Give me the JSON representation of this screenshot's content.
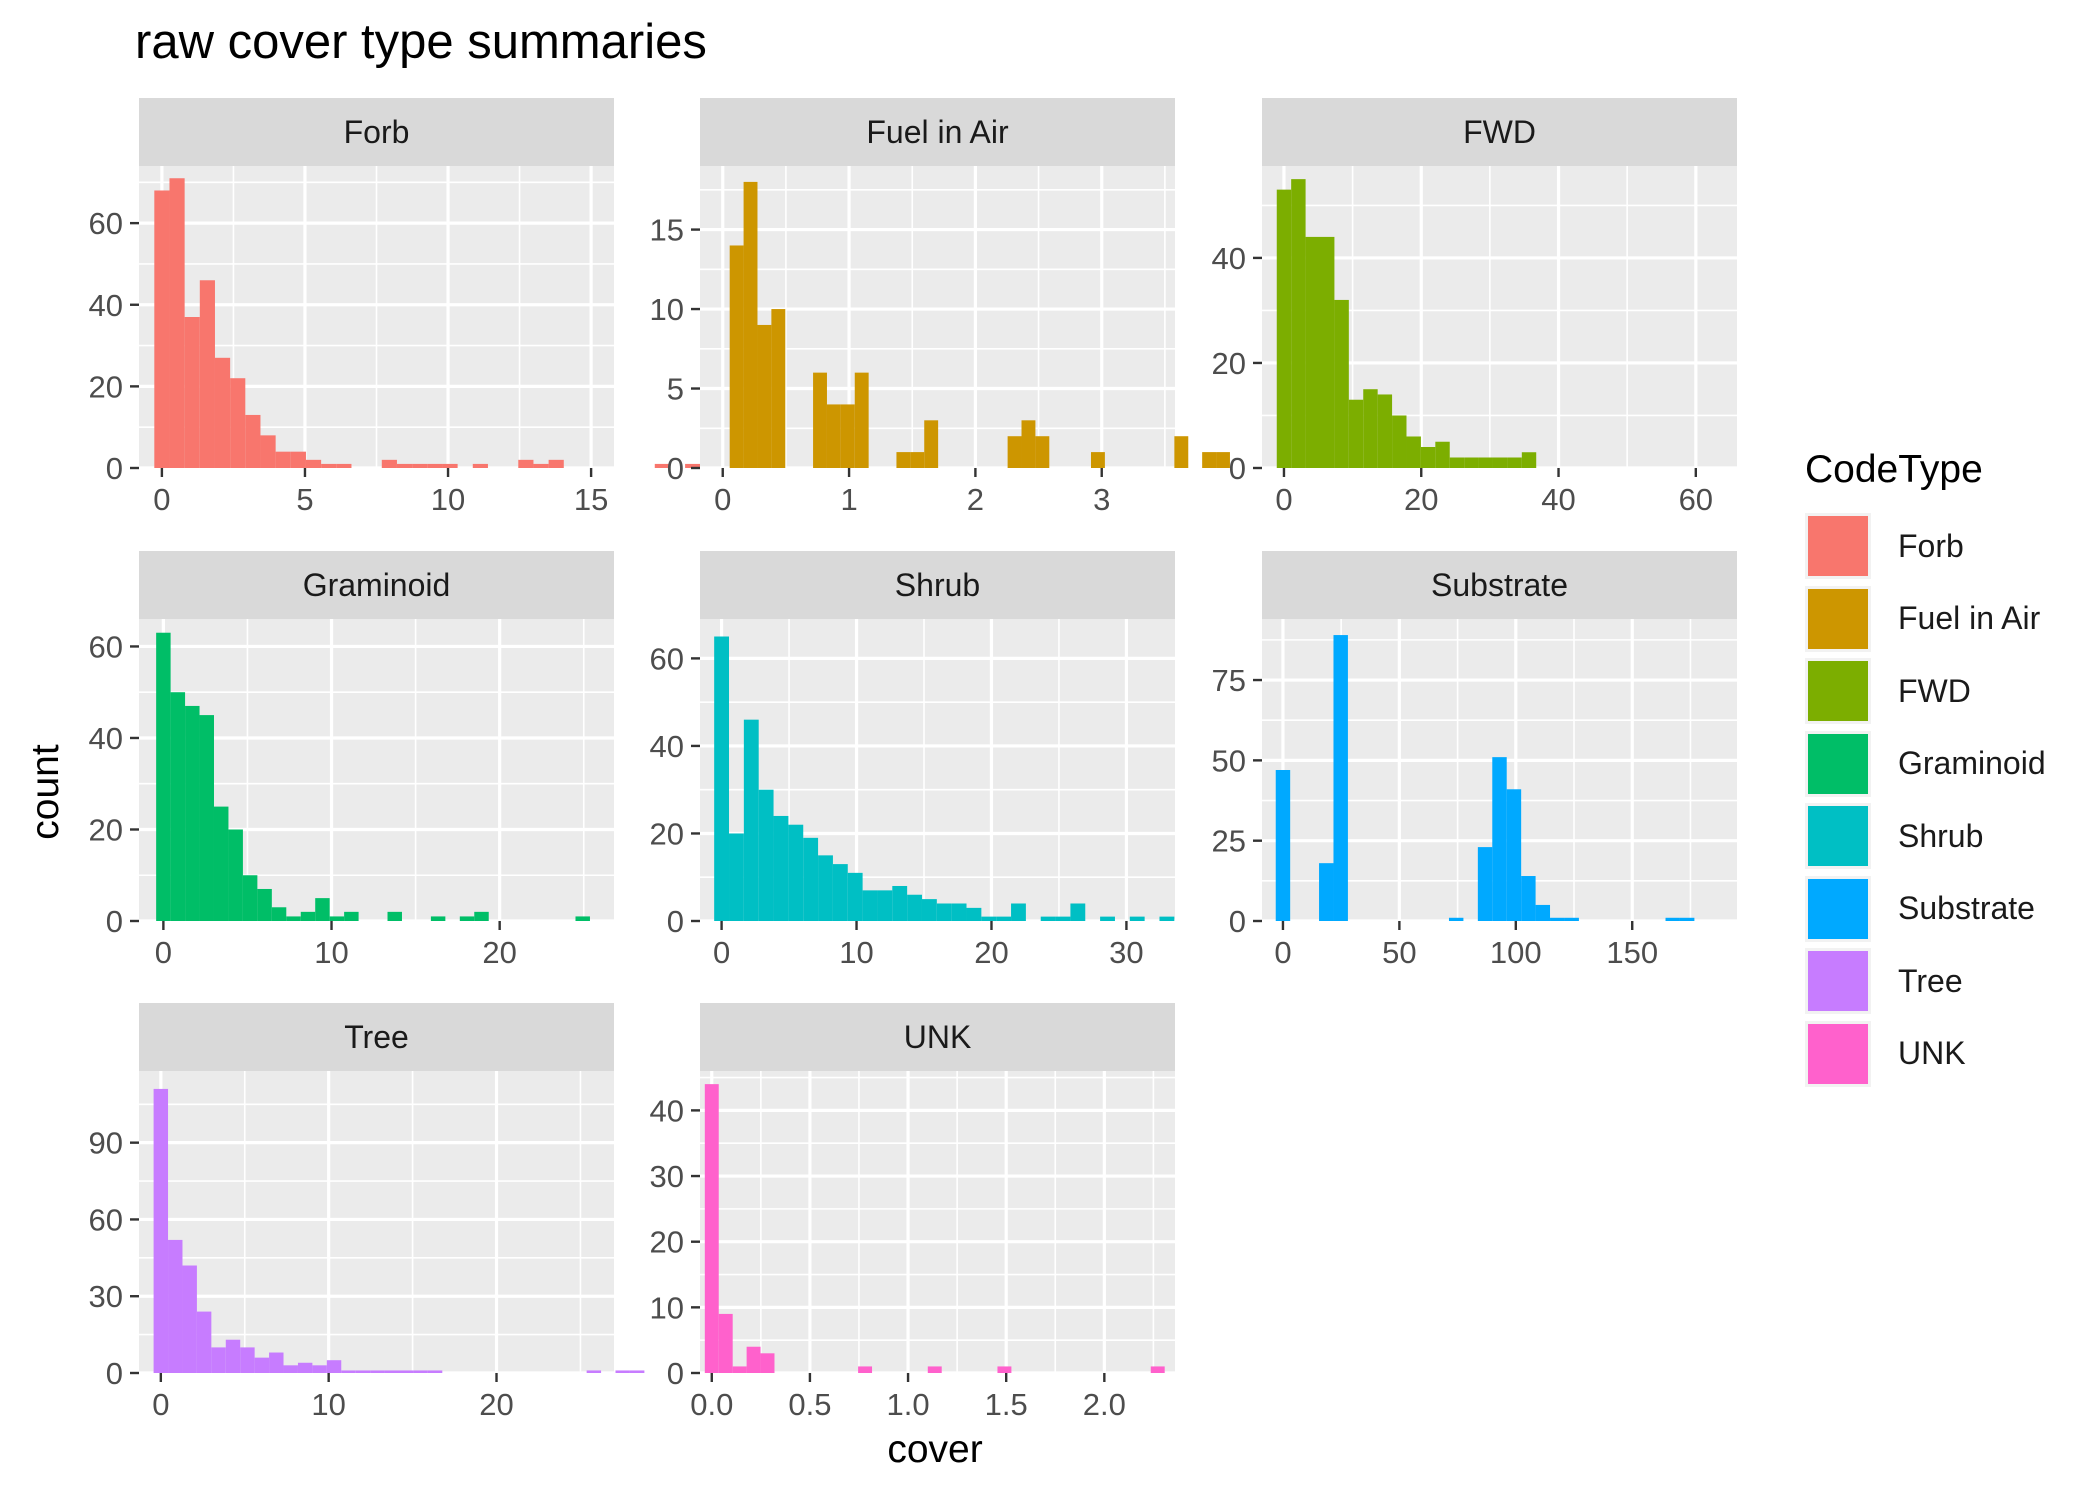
{
  "chart_data": {
    "type": "bar",
    "title": "raw cover type summaries",
    "xlabel": "cover",
    "ylabel": "count",
    "legend": {
      "title": "CodeType",
      "position": "right"
    },
    "grid": true,
    "panels": [
      {
        "name": "Forb",
        "color": "#F8766D",
        "xlim": [
          -0.8,
          15.8
        ],
        "ylim": [
          0,
          74
        ],
        "xticks": [
          0,
          5,
          10,
          15
        ],
        "yticks": [
          0,
          20,
          40,
          60
        ],
        "binwidth": 0.53,
        "bin_start": -0.265,
        "counts": [
          68,
          71,
          37,
          46,
          27,
          22,
          13,
          8,
          4,
          4,
          2,
          1,
          1,
          0,
          0,
          2,
          1,
          1,
          1,
          1,
          0,
          1,
          0,
          0,
          2,
          1,
          2,
          0,
          0,
          0,
          0,
          0,
          0,
          1,
          0,
          1,
          1
        ]
      },
      {
        "name": "Fuel in Air",
        "color": "#CD9600",
        "xlim": [
          -0.18,
          3.58
        ],
        "ylim": [
          0,
          19
        ],
        "xticks": [
          0,
          1,
          2,
          3
        ],
        "yticks": [
          0,
          5,
          10,
          15
        ],
        "binwidth": 0.11,
        "bin_start": 0.055,
        "counts": [
          14,
          18,
          9,
          10,
          0,
          0,
          6,
          4,
          4,
          6,
          0,
          0,
          1,
          1,
          3,
          0,
          0,
          0,
          0,
          0,
          2,
          3,
          2,
          0,
          0,
          0,
          1,
          0,
          0,
          0,
          0,
          0,
          2,
          0,
          1,
          1
        ]
      },
      {
        "name": "FWD",
        "color": "#7CAE00",
        "xlim": [
          -3.2,
          66
        ],
        "ylim": [
          0,
          57.5
        ],
        "xticks": [
          0,
          20,
          40,
          60
        ],
        "yticks": [
          0,
          20,
          40
        ],
        "binwidth": 2.1,
        "bin_start": -1.05,
        "counts": [
          53,
          55,
          44,
          44,
          32,
          13,
          15,
          14,
          10,
          6,
          4,
          5,
          2,
          2,
          2,
          2,
          2,
          3,
          0,
          0,
          0,
          0,
          0,
          0,
          0,
          0,
          0,
          0,
          0,
          0,
          0,
          0,
          0,
          0,
          0,
          0,
          0,
          0,
          0,
          0,
          0,
          0,
          0,
          0,
          0,
          0,
          0,
          0,
          0,
          0,
          0,
          0,
          0,
          0,
          0,
          0,
          0,
          0,
          0,
          0,
          0,
          0,
          0,
          0,
          0,
          0,
          0,
          0,
          0,
          0,
          0,
          0,
          0,
          0,
          0,
          0,
          0,
          0,
          0,
          0,
          0,
          0,
          0,
          0,
          0,
          0,
          0,
          0,
          0,
          0,
          0,
          0,
          0,
          0,
          0,
          0,
          0,
          0,
          0,
          0
        ]
      },
      {
        "name": "Graminoid",
        "color": "#00BE67",
        "xlim": [
          -1.45,
          26.8
        ],
        "ylim": [
          0,
          66
        ],
        "xticks": [
          0,
          10,
          20
        ],
        "yticks": [
          0,
          20,
          40,
          60
        ],
        "binwidth": 0.86,
        "bin_start": -0.43,
        "counts": [
          63,
          50,
          47,
          45,
          25,
          20,
          10,
          7,
          3,
          1,
          2,
          5,
          1,
          2,
          0,
          0,
          2,
          0,
          0,
          1,
          0,
          1,
          2,
          0,
          0,
          0,
          0,
          0,
          0,
          1
        ]
      },
      {
        "name": "Shrub",
        "color": "#00BFC4",
        "xlim": [
          -1.6,
          33.6
        ],
        "ylim": [
          0,
          69
        ],
        "xticks": [
          0,
          10,
          20,
          30
        ],
        "yticks": [
          0,
          20,
          40,
          60
        ],
        "binwidth": 1.1,
        "bin_start": -0.55,
        "counts": [
          65,
          20,
          46,
          30,
          24,
          22,
          19,
          15,
          13,
          11,
          7,
          7,
          8,
          6,
          5,
          4,
          4,
          3,
          1,
          1,
          4,
          0,
          1,
          1,
          4,
          0,
          1,
          0,
          1,
          0,
          1
        ]
      },
      {
        "name": "Substrate",
        "color": "#00A9FF",
        "xlim": [
          -9,
          195
        ],
        "ylim": [
          0,
          94
        ],
        "xticks": [
          0,
          50,
          100,
          150
        ],
        "yticks": [
          0,
          25,
          50,
          75
        ],
        "binwidth": 6.2,
        "bin_start": -3.1,
        "counts": [
          47,
          0,
          0,
          18,
          89,
          0,
          0,
          0,
          0,
          0,
          0,
          0,
          1,
          0,
          23,
          51,
          41,
          14,
          5,
          1,
          1,
          0,
          0,
          0,
          0,
          0,
          0,
          1,
          1,
          0,
          0
        ]
      },
      {
        "name": "Tree",
        "color": "#C77CFF",
        "xlim": [
          -1.3,
          27
        ],
        "ylim": [
          0,
          118
        ],
        "xticks": [
          0,
          10,
          20
        ],
        "yticks": [
          0,
          30,
          60,
          90
        ],
        "binwidth": 0.86,
        "bin_start": -0.43,
        "counts": [
          111,
          52,
          42,
          24,
          10,
          13,
          10,
          6,
          8,
          3,
          4,
          3,
          5,
          1,
          1,
          1,
          1,
          1,
          1,
          1,
          0,
          0,
          0,
          0,
          0,
          0,
          0,
          0,
          0,
          0,
          1,
          0,
          1,
          1
        ]
      },
      {
        "name": "UNK",
        "color": "#FF61CC",
        "xlim": [
          -0.06,
          2.36
        ],
        "ylim": [
          0,
          46
        ],
        "xticks": [
          0.0,
          0.5,
          1.0,
          1.5,
          2.0
        ],
        "yticks": [
          0,
          10,
          20,
          30,
          40
        ],
        "xtick_labels": [
          "0.0",
          "0.5",
          "1.0",
          "1.5",
          "2.0"
        ],
        "binwidth": 0.071,
        "bin_start": -0.0355,
        "counts": [
          44,
          9,
          1,
          4,
          3,
          0,
          0,
          0,
          0,
          0,
          0,
          1,
          0,
          0,
          0,
          0,
          1,
          0,
          0,
          0,
          0,
          1,
          0,
          0,
          0,
          0,
          0,
          0,
          0,
          0,
          0,
          0,
          1
        ]
      }
    ]
  }
}
